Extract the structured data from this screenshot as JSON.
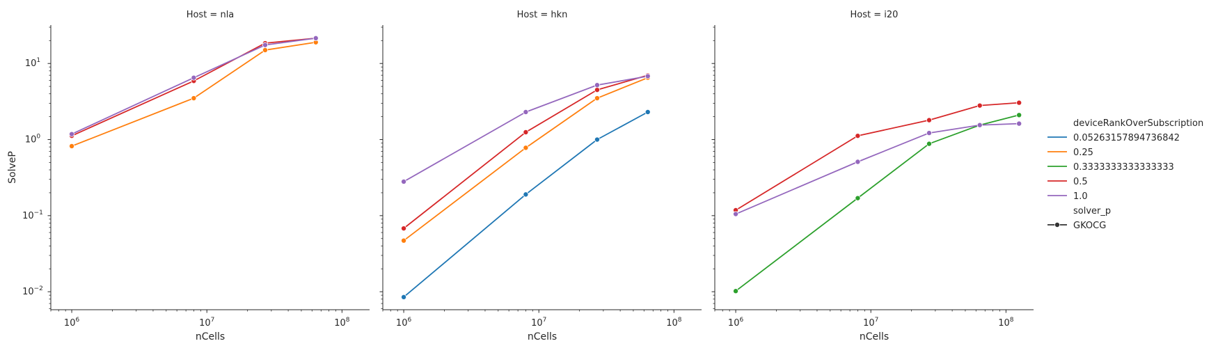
{
  "chart_data": {
    "type": "line",
    "x_scale": "log",
    "y_scale": "log",
    "xlabel": "nCells",
    "ylabel": "SolveP",
    "xlim": [
      700000,
      160000000
    ],
    "ylim": [
      0.0058,
      32
    ],
    "x_ticks": [
      {
        "value": 1000000,
        "label": "10",
        "exp": "6"
      },
      {
        "value": 10000000,
        "label": "10",
        "exp": "7"
      },
      {
        "value": 100000000,
        "label": "10",
        "exp": "8"
      }
    ],
    "y_ticks": [
      {
        "value": 0.01,
        "label": "10",
        "exp": "−2"
      },
      {
        "value": 0.1,
        "label": "10",
        "exp": "−1"
      },
      {
        "value": 1,
        "label": "10",
        "exp": "0"
      },
      {
        "value": 10,
        "label": "10",
        "exp": "1"
      }
    ],
    "legend_position": "right",
    "legend": {
      "hue_title": "deviceRankOverSubscription",
      "style_title": "solver_p",
      "style_entries": [
        {
          "label": "GKOCG"
        }
      ],
      "hue_entries": [
        {
          "label": "0.05263157894736842",
          "color": "#1f77b4"
        },
        {
          "label": "0.25",
          "color": "#ff7f0e"
        },
        {
          "label": "0.3333333333333333",
          "color": "#2ca02c"
        },
        {
          "label": "0.5",
          "color": "#d62728"
        },
        {
          "label": "1.0",
          "color": "#9467bd"
        }
      ]
    },
    "panels": [
      {
        "title": "Host = nla",
        "series": [
          {
            "name": "0.25",
            "color": "#ff7f0e",
            "x": [
              1000000,
              8000000,
              27000000,
              64000000
            ],
            "y": [
              0.82,
              3.5,
              15,
              19
            ]
          },
          {
            "name": "0.5",
            "color": "#d62728",
            "x": [
              1000000,
              8000000,
              27000000,
              64000000
            ],
            "y": [
              1.12,
              5.9,
              18.5,
              21.5
            ]
          },
          {
            "name": "1.0",
            "color": "#9467bd",
            "x": [
              1000000,
              8000000,
              27000000,
              64000000
            ],
            "y": [
              1.18,
              6.5,
              17.5,
              21.5
            ]
          }
        ]
      },
      {
        "title": "Host = hkn",
        "series": [
          {
            "name": "0.05263157894736842",
            "color": "#1f77b4",
            "x": [
              1000000,
              8000000,
              27000000,
              64000000
            ],
            "y": [
              0.0085,
              0.19,
              1.0,
              2.3
            ]
          },
          {
            "name": "0.25",
            "color": "#ff7f0e",
            "x": [
              1000000,
              8000000,
              27000000,
              64000000
            ],
            "y": [
              0.047,
              0.78,
              3.5,
              6.5
            ]
          },
          {
            "name": "0.5",
            "color": "#d62728",
            "x": [
              1000000,
              8000000,
              27000000,
              64000000
            ],
            "y": [
              0.068,
              1.25,
              4.5,
              7.0
            ]
          },
          {
            "name": "1.0",
            "color": "#9467bd",
            "x": [
              1000000,
              8000000,
              27000000,
              64000000
            ],
            "y": [
              0.28,
              2.3,
              5.2,
              6.8
            ]
          }
        ]
      },
      {
        "title": "Host = i20",
        "series": [
          {
            "name": "0.3333333333333333",
            "color": "#2ca02c",
            "x": [
              1000000,
              8000000,
              27000000,
              64000000,
              125000000
            ],
            "y": [
              0.0102,
              0.17,
              0.88,
              1.55,
              2.1
            ]
          },
          {
            "name": "0.5",
            "color": "#d62728",
            "x": [
              1000000,
              8000000,
              27000000,
              64000000,
              125000000
            ],
            "y": [
              0.118,
              1.12,
              1.8,
              2.8,
              3.05
            ]
          },
          {
            "name": "1.0",
            "color": "#9467bd",
            "x": [
              1000000,
              8000000,
              27000000,
              64000000,
              125000000
            ],
            "y": [
              0.105,
              0.51,
              1.22,
              1.55,
              1.62
            ]
          }
        ]
      }
    ]
  }
}
